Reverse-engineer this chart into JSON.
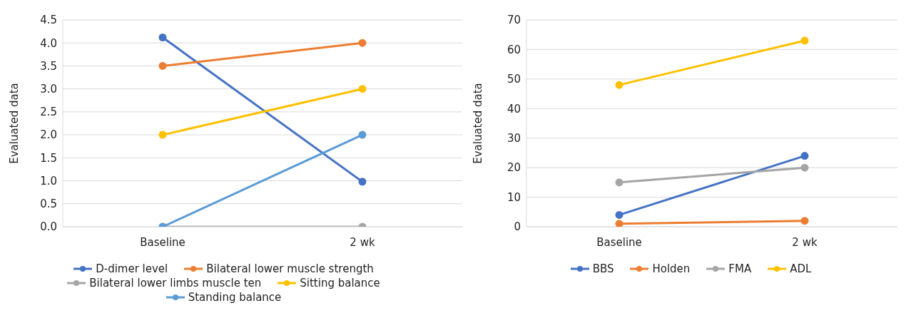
{
  "chart_data": [
    {
      "type": "line",
      "ylabel": "Evaluated data",
      "categories": [
        "Baseline",
        "2 wk"
      ],
      "ylim": [
        0,
        4.5
      ],
      "yticks": [
        {
          "value": 0,
          "label": "0.0"
        },
        0.5,
        {
          "value": 1,
          "label": "1.0"
        },
        1.5,
        {
          "value": 2,
          "label": "2.0"
        },
        2.5,
        {
          "value": 3,
          "label": "3.0"
        },
        3.5,
        {
          "value": 4,
          "label": "4.0"
        },
        4.5
      ],
      "grid": "y",
      "legend": "bottom",
      "marker": "circle",
      "series": [
        {
          "name": "D-dimer level",
          "color": "#4472c4",
          "values": [
            4.12,
            0.98
          ]
        },
        {
          "name": "Bilateral lower muscle strength",
          "color": "#ed7d31",
          "values": [
            3.5,
            4
          ]
        },
        {
          "name": "Bilateral lower limbs muscle ten",
          "color": "#a5a5a5",
          "values": [
            0,
            0
          ]
        },
        {
          "name": "Sitting balance",
          "color": "#ffc000",
          "values": [
            2,
            3
          ]
        },
        {
          "name": "Standing balance",
          "color": "#5b9bd5",
          "values": [
            0,
            2
          ]
        }
      ]
    },
    {
      "type": "line",
      "ylabel": "Evaluated data",
      "categories": [
        "Baseline",
        "2 wk"
      ],
      "ylim": [
        0,
        70
      ],
      "yticks": [
        0,
        10,
        20,
        30,
        40,
        50,
        60,
        70
      ],
      "grid": "y",
      "legend": "bottom",
      "marker": "circle",
      "series": [
        {
          "name": "BBS",
          "color": "#4472c4",
          "values": [
            4,
            24
          ]
        },
        {
          "name": "Holden",
          "color": "#ed7d31",
          "values": [
            1,
            2
          ]
        },
        {
          "name": "FMA",
          "color": "#a5a5a5",
          "values": [
            15,
            20
          ]
        },
        {
          "name": "ADL",
          "color": "#ffc000",
          "values": [
            48,
            63
          ]
        }
      ]
    }
  ]
}
